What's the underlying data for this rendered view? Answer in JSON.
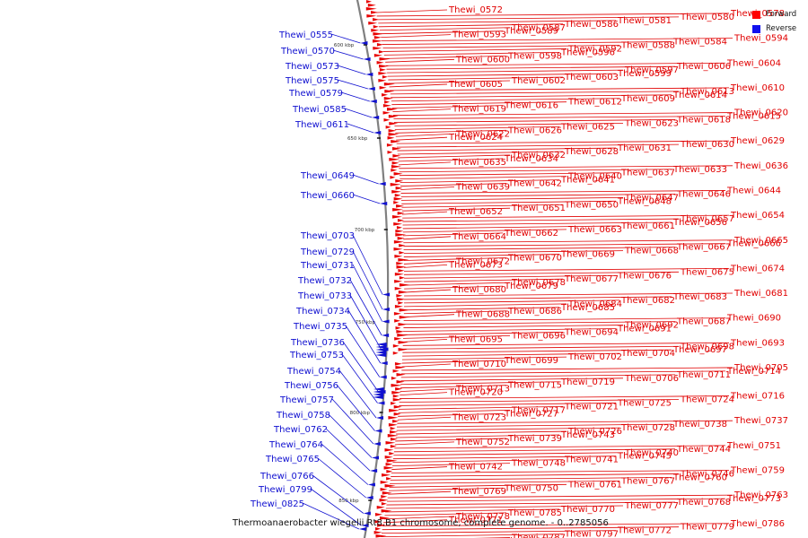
{
  "caption": "Thermoanaerobacter wiegelii Rt8.B1 chromosome, complete genome. - 0..2785056",
  "legend": {
    "forward_label": "Forward",
    "reverse_label": "Reverse",
    "forward_color": "#ff0000",
    "reverse_color": "#1010ee"
  },
  "colors": {
    "forward": "#e10000",
    "reverse": "#1010d0",
    "backbone": "#808080"
  },
  "ticks": [
    "600 kbp",
    "650 kbp",
    "700 kbp",
    "750 kbp",
    "800 kbp",
    "850 kbp"
  ],
  "forward_genes": [
    "Thewi_0572",
    "Thewi_0578",
    "Thewi_0580",
    "Thewi_0581",
    "Thewi_0586",
    "Thewi_0587",
    "Thewi_0589",
    "Thewi_0593",
    "Thewi_0594",
    "Thewi_0584",
    "Thewi_0588",
    "Thewi_0592",
    "Thewi_0596",
    "Thewi_0598",
    "Thewi_0600",
    "Thewi_0604",
    "Thewi_0606",
    "Thewi_0597",
    "Thewi_0599",
    "Thewi_0603",
    "Thewi_0602",
    "Thewi_0605",
    "Thewi_0610",
    "Thewi_0613",
    "Thewi_0614",
    "Thewi_0609",
    "Thewi_0612",
    "Thewi_0616",
    "Thewi_0619",
    "Thewi_0620",
    "Thewi_0615",
    "Thewi_0618",
    "Thewi_0623",
    "Thewi_0625",
    "Thewi_0626",
    "Thewi_0622",
    "Thewi_0624",
    "Thewi_0629",
    "Thewi_0630",
    "Thewi_0631",
    "Thewi_0628",
    "Thewi_0632",
    "Thewi_0634",
    "Thewi_0635",
    "Thewi_0636",
    "Thewi_0633",
    "Thewi_0637",
    "Thewi_0640",
    "Thewi_0641",
    "Thewi_0642",
    "Thewi_0639",
    "Thewi_0644",
    "Thewi_0646",
    "Thewi_0647",
    "Thewi_0648",
    "Thewi_0650",
    "Thewi_0651",
    "Thewi_0652",
    "Thewi_0654",
    "Thewi_0657",
    "Thewi_0656",
    "Thewi_0661",
    "Thewi_0663",
    "Thewi_0662",
    "Thewi_0664",
    "Thewi_0665",
    "Thewi_0666",
    "Thewi_0667",
    "Thewi_0668",
    "Thewi_0669",
    "Thewi_0670",
    "Thewi_0672",
    "Thewi_0673",
    "Thewi_0674",
    "Thewi_0675",
    "Thewi_0676",
    "Thewi_0677",
    "Thewi_0678",
    "Thewi_0679",
    "Thewi_0680",
    "Thewi_0681",
    "Thewi_0683",
    "Thewi_0682",
    "Thewi_0684",
    "Thewi_0685",
    "Thewi_0686",
    "Thewi_0688",
    "Thewi_0690",
    "Thewi_0687",
    "Thewi_0692",
    "Thewi_0691",
    "Thewi_0694",
    "Thewi_0696",
    "Thewi_0695",
    "Thewi_0693",
    "Thewi_0698",
    "Thewi_0697",
    "Thewi_0704",
    "Thewi_0702",
    "Thewi_0699",
    "Thewi_0710",
    "Thewi_0705",
    "Thewi_0714",
    "Thewi_0711",
    "Thewi_0706",
    "Thewi_0719",
    "Thewi_0715",
    "Thewi_0713",
    "Thewi_0720",
    "Thewi_0716",
    "Thewi_0724",
    "Thewi_0725",
    "Thewi_0721",
    "Thewi_0717",
    "Thewi_0727",
    "Thewi_0723",
    "Thewi_0737",
    "Thewi_0738",
    "Thewi_0728",
    "Thewi_0726",
    "Thewi_0743",
    "Thewi_0739",
    "Thewi_0752",
    "Thewi_0751",
    "Thewi_0744",
    "Thewi_0740",
    "Thewi_0745",
    "Thewi_0741",
    "Thewi_0748",
    "Thewi_0742",
    "Thewi_0759",
    "Thewi_0746",
    "Thewi_0760",
    "Thewi_0767",
    "Thewi_0761",
    "Thewi_0750",
    "Thewi_0769",
    "Thewi_0763",
    "Thewi_0773",
    "Thewi_0768",
    "Thewi_0777",
    "Thewi_0770",
    "Thewi_0785",
    "Thewi_0778",
    "Thewi_0771",
    "Thewi_0786",
    "Thewi_0779",
    "Thewi_0772",
    "Thewi_0797",
    "Thewi_0787",
    "Thewi_0781",
    "Thewi_0774",
    "Thewi_0782",
    "Thewi_0790"
  ],
  "reverse_genes": [
    "Thewi_0555",
    "Thewi_0570",
    "Thewi_0573",
    "Thewi_0575",
    "Thewi_0579",
    "Thewi_0585",
    "Thewi_0611",
    "Thewi_0649",
    "Thewi_0660",
    "Thewi_0703",
    "Thewi_0729",
    "Thewi_0731",
    "Thewi_0732",
    "Thewi_0733",
    "Thewi_0734",
    "Thewi_0735",
    "Thewi_0736",
    "Thewi_0753",
    "Thewi_0754",
    "Thewi_0756",
    "Thewi_0757",
    "Thewi_0758",
    "Thewi_0762",
    "Thewi_0764",
    "Thewi_0765",
    "Thewi_0766",
    "Thewi_0799",
    "Thewi_0825"
  ]
}
